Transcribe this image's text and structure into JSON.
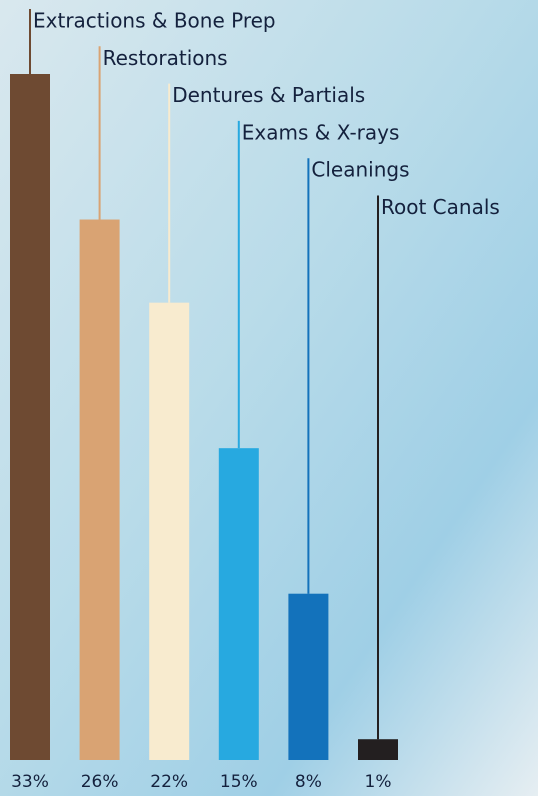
{
  "chart_data": {
    "type": "bar",
    "categories": [
      "Extractions & Bone Prep",
      "Restorations",
      "Dentures & Partials",
      "Exams & X-rays",
      "Cleanings",
      "Root Canals"
    ],
    "values": [
      33,
      26,
      22,
      15,
      8,
      1
    ],
    "value_labels": [
      "33%",
      "26%",
      "22%",
      "15%",
      "8%",
      "1%"
    ],
    "colors": [
      "#6e4a32",
      "#d9a373",
      "#f8ebcf",
      "#27a9e0",
      "#1372bb",
      "#231f20"
    ]
  }
}
